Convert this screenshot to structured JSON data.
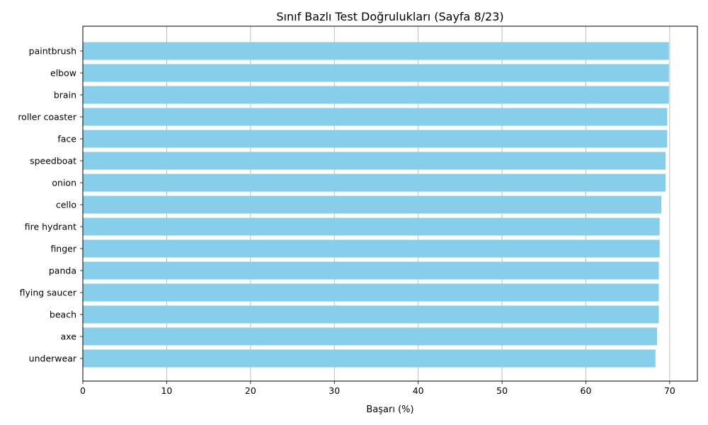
{
  "chart_data": {
    "type": "bar",
    "orientation": "horizontal",
    "title": "Sınıf Bazlı Test Doğrulukları (Sayfa 8/23)",
    "xlabel": "Başarı (%)",
    "ylabel": "",
    "xlim": [
      0,
      73.3
    ],
    "xticks": [
      0,
      10,
      20,
      30,
      40,
      50,
      60,
      70
    ],
    "grid": "vertical",
    "bar_color": "#87ceeb",
    "categories": [
      "paintbrush",
      "elbow",
      "brain",
      "roller coaster",
      "face",
      "speedboat",
      "onion",
      "cello",
      "fire hydrant",
      "finger",
      "panda",
      "flying saucer",
      "beach",
      "axe",
      "underwear"
    ],
    "values": [
      69.9,
      69.9,
      69.9,
      69.7,
      69.7,
      69.5,
      69.5,
      69.0,
      68.8,
      68.8,
      68.7,
      68.7,
      68.7,
      68.5,
      68.3
    ]
  }
}
